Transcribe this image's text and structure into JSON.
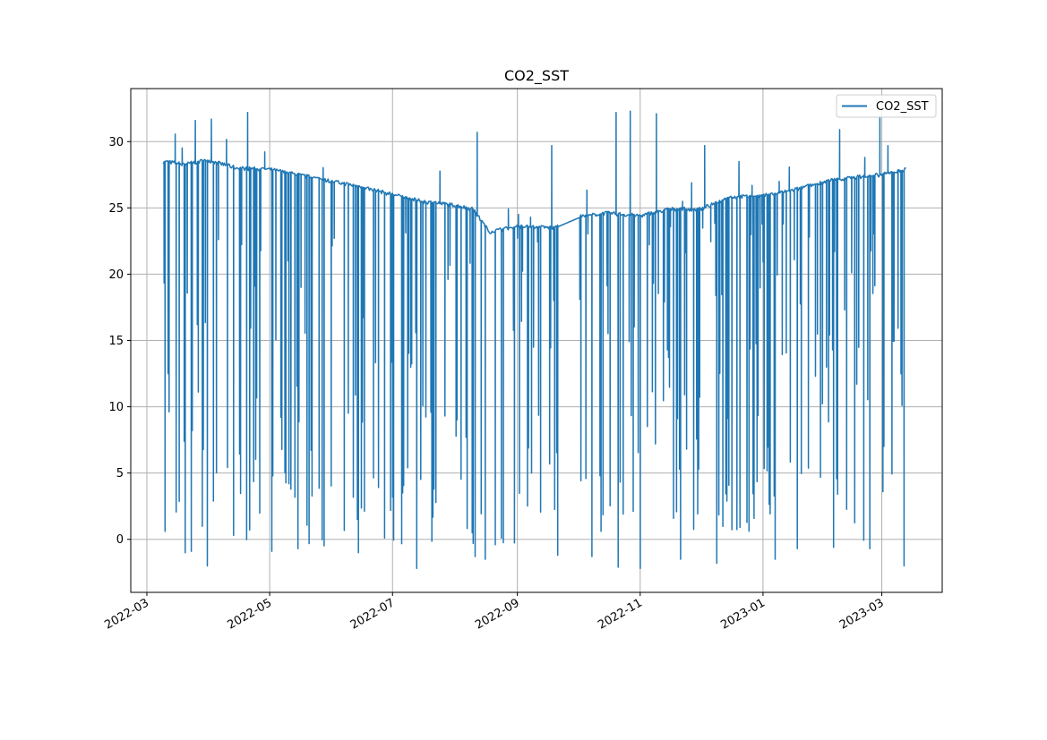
{
  "chart_data": {
    "type": "line",
    "title": "CO2_SST",
    "xlabel": "",
    "ylabel": "",
    "x_type": "date",
    "xlim": [
      "2022-02-21",
      "2023-03-31"
    ],
    "ylim": [
      -4,
      34
    ],
    "x_ticks": [
      "2022-03-01",
      "2022-05-01",
      "2022-07-01",
      "2022-09-01",
      "2022-11-01",
      "2023-01-01",
      "2023-03-01"
    ],
    "x_tick_labels": [
      "2022-03",
      "2022-05",
      "2022-07",
      "2022-09",
      "2022-11",
      "2023-01",
      "2023-03"
    ],
    "y_ticks": [
      0,
      5,
      10,
      15,
      20,
      25,
      30
    ],
    "y_tick_labels": [
      "0",
      "5",
      "10",
      "15",
      "20",
      "25",
      "30"
    ],
    "grid": true,
    "legend": {
      "position": "top-right",
      "entries": [
        "CO2_SST"
      ]
    },
    "colors": {
      "series": "#1f77b4",
      "grid": "#b0b0b0",
      "axes": "#000000"
    },
    "series": [
      {
        "name": "CO2_SST",
        "baseline": [
          [
            "2022-03-09",
            28.5
          ],
          [
            "2022-03-20",
            28.3
          ],
          [
            "2022-03-31",
            28.6
          ],
          [
            "2022-04-15",
            28.0
          ],
          [
            "2022-05-01",
            27.9
          ],
          [
            "2022-05-15",
            27.5
          ],
          [
            "2022-06-01",
            27.0
          ],
          [
            "2022-06-15",
            26.6
          ],
          [
            "2022-07-01",
            26.0
          ],
          [
            "2022-07-15",
            25.5
          ],
          [
            "2022-08-01",
            25.2
          ],
          [
            "2022-08-10",
            24.9
          ],
          [
            "2022-08-18",
            23.2
          ],
          [
            "2022-09-01",
            23.6
          ],
          [
            "2022-09-20",
            23.5
          ],
          [
            "2022-10-01",
            24.3
          ],
          [
            "2022-10-15",
            24.6
          ],
          [
            "2022-11-01",
            24.4
          ],
          [
            "2022-11-15",
            24.9
          ],
          [
            "2022-12-01",
            24.9
          ],
          [
            "2022-12-15",
            25.8
          ],
          [
            "2023-01-01",
            25.9
          ],
          [
            "2023-01-15",
            26.3
          ],
          [
            "2023-02-01",
            27.0
          ],
          [
            "2023-02-15",
            27.3
          ],
          [
            "2023-03-01",
            27.5
          ],
          [
            "2023-03-13",
            27.9
          ]
        ],
        "gap": [
          "2022-09-21",
          "2022-10-01"
        ],
        "spikes": [
          [
            "2022-03-10",
            30.6
          ],
          [
            "2022-03-25",
            31.6
          ],
          [
            "2022-04-02",
            31.7
          ],
          [
            "2022-04-20",
            32.2
          ],
          [
            "2022-08-12",
            30.7
          ],
          [
            "2022-09-18",
            29.7
          ],
          [
            "2022-10-20",
            32.2
          ],
          [
            "2022-10-27",
            32.3
          ],
          [
            "2022-11-09",
            32.1
          ],
          [
            "2022-12-03",
            29.7
          ],
          [
            "2022-12-20",
            28.5
          ],
          [
            "2023-02-08",
            30.9
          ],
          [
            "2023-02-28",
            31.9
          ],
          [
            "2023-03-04",
            29.7
          ]
        ],
        "dips": [
          [
            "2022-03-10",
            0.6
          ],
          [
            "2022-03-20",
            -1.0
          ],
          [
            "2022-03-23",
            -0.9
          ],
          [
            "2022-03-31",
            -2.0
          ],
          [
            "2022-04-13",
            0.3
          ],
          [
            "2022-05-02",
            -0.9
          ],
          [
            "2022-05-15",
            -0.7
          ],
          [
            "2022-06-14",
            -1.0
          ],
          [
            "2022-06-27",
            0.1
          ],
          [
            "2022-07-13",
            -2.2
          ],
          [
            "2022-08-11",
            -1.3
          ],
          [
            "2022-08-16",
            -1.5
          ],
          [
            "2022-08-21",
            -0.4
          ],
          [
            "2022-09-21",
            -1.2
          ],
          [
            "2022-10-08",
            -1.3
          ],
          [
            "2022-10-21",
            -2.1
          ],
          [
            "2022-11-01",
            -2.2
          ],
          [
            "2022-11-21",
            -1.5
          ],
          [
            "2022-12-09",
            -1.8
          ],
          [
            "2023-01-07",
            -1.5
          ],
          [
            "2023-01-18",
            -0.7
          ],
          [
            "2023-02-05",
            -0.6
          ],
          [
            "2023-02-23",
            -0.7
          ],
          [
            "2023-03-12",
            -2.0
          ]
        ]
      }
    ]
  }
}
